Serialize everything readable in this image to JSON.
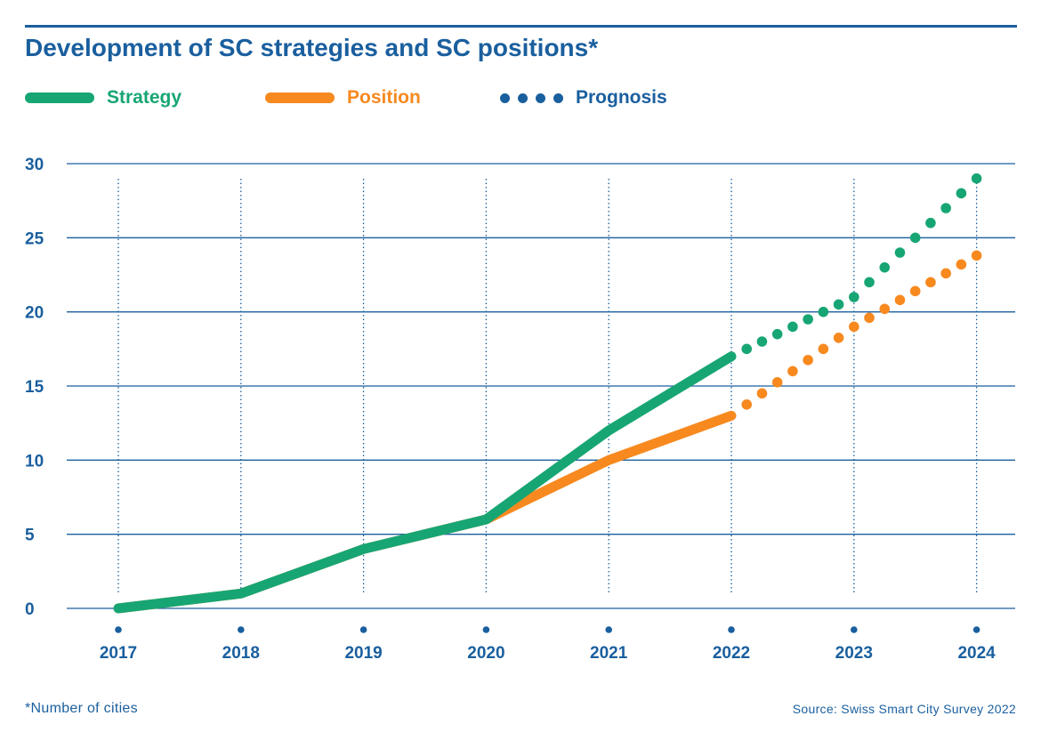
{
  "title": "Development of SC strategies and SC positions*",
  "legend": {
    "strategy": {
      "label": "Strategy",
      "color": "#17a673"
    },
    "position": {
      "label": "Position",
      "color": "#f7891f"
    },
    "prognosis": {
      "label": "Prognosis",
      "color": "#1a5f9e"
    }
  },
  "footnote": "*Number of cities",
  "source": "Source: Swiss Smart City Survey 2022",
  "colors": {
    "axis": "#1a5f9e",
    "grid": "#1a5f9e"
  },
  "chart_data": {
    "type": "line",
    "title": "Development of SC strategies and SC positions*",
    "x": [
      "2017",
      "2018",
      "2019",
      "2020",
      "2021",
      "2022",
      "2023",
      "2024"
    ],
    "ylim": [
      0,
      30
    ],
    "yticks": [
      "0",
      "5",
      "10",
      "15",
      "20",
      "25",
      "30"
    ],
    "grid": true,
    "legend_position": "top",
    "series": [
      {
        "name": "Strategy",
        "color": "#17a673",
        "style": "solid",
        "values": [
          0,
          1,
          4,
          6,
          12,
          17,
          null,
          null
        ]
      },
      {
        "name": "Position",
        "color": "#f7891f",
        "style": "solid",
        "values": [
          0,
          1,
          4,
          6,
          10,
          13,
          null,
          null
        ]
      },
      {
        "name": "Strategy",
        "color": "#17a673",
        "style": "prognosis",
        "values": [
          null,
          null,
          null,
          null,
          null,
          17,
          21,
          29
        ]
      },
      {
        "name": "Position",
        "color": "#f7891f",
        "style": "prognosis",
        "values": [
          null,
          null,
          null,
          null,
          null,
          13,
          19,
          23.8
        ]
      }
    ]
  }
}
